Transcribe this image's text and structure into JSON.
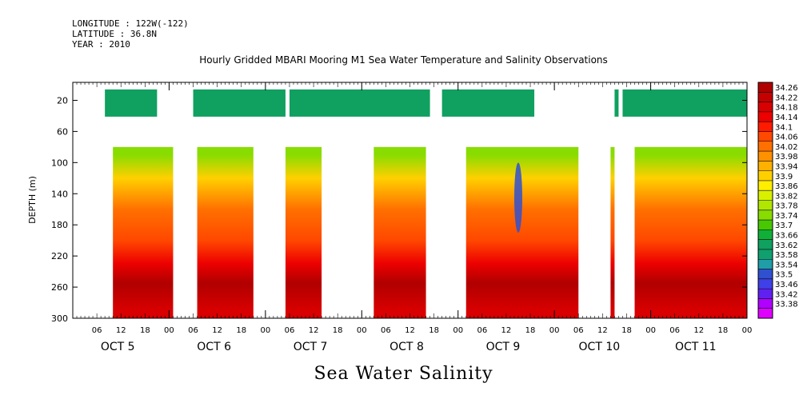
{
  "header": {
    "longitude": "LONGITUDE : 122W(-122)",
    "latitude": "LATITUDE : 36.8N",
    "year": "YEAR : 2010",
    "title": "Hourly Gridded MBARI Mooring M1 Sea Water Temperature and Salinity Observations"
  },
  "footer": {
    "variable": "Sea Water Salinity"
  },
  "chart_data": {
    "type": "heatmap",
    "title": "Hourly Gridded MBARI Mooring M1 Sea Water Temperature and Salinity Observations",
    "variable": "Sea Water Salinity",
    "ylabel": "DEPTH (m)",
    "ylim": [
      300,
      0
    ],
    "y_ticks": [
      "20",
      "60",
      "100",
      "140",
      "180",
      "220",
      "260",
      "300"
    ],
    "x_range_hours": [
      0,
      168
    ],
    "x_hour_ticks": [
      "06",
      "12",
      "18",
      "00",
      "06",
      "12",
      "18",
      "00",
      "06",
      "12",
      "18",
      "00",
      "06",
      "12",
      "18",
      "00",
      "06",
      "12",
      "18",
      "00",
      "06",
      "12",
      "18",
      "00",
      "06",
      "12",
      "18",
      "00"
    ],
    "x_day_labels": [
      "OCT  5",
      "OCT  6",
      "OCT  7",
      "OCT  8",
      "OCT  9",
      "OCT 10",
      "OCT 11"
    ],
    "colorbar": {
      "levels": [
        "34.26",
        "34.22",
        "34.18",
        "34.14",
        "34.1",
        "34.06",
        "34.02",
        "33.98",
        "33.94",
        "33.9",
        "33.86",
        "33.82",
        "33.78",
        "33.74",
        "33.7",
        "33.66",
        "33.62",
        "33.58",
        "33.54",
        "33.5",
        "33.46",
        "33.42",
        "33.38"
      ],
      "colors": [
        "#b00000",
        "#c40000",
        "#d80000",
        "#ec0000",
        "#ff1a00",
        "#ff4800",
        "#ff7000",
        "#ff9000",
        "#ffb000",
        "#ffd000",
        "#ffee00",
        "#d8f000",
        "#b0e600",
        "#88dc00",
        "#48c800",
        "#10b038",
        "#10a060",
        "#10a070",
        "#1f9ea8",
        "#3050d0",
        "#4040e8",
        "#6020f0",
        "#b000ff",
        "#e000ff"
      ]
    },
    "depth_profile": [
      {
        "depth": 20,
        "salinity": 33.64
      },
      {
        "depth": 90,
        "salinity": 33.74
      },
      {
        "depth": 120,
        "salinity": 33.9
      },
      {
        "depth": 160,
        "salinity": 34.02
      },
      {
        "depth": 200,
        "salinity": 34.06
      },
      {
        "depth": 230,
        "salinity": 34.12
      },
      {
        "depth": 255,
        "salinity": 34.24
      },
      {
        "depth": 290,
        "salinity": 34.18
      }
    ],
    "data_segments_hours": [
      [
        10,
        25
      ],
      [
        31,
        45
      ],
      [
        53,
        62
      ],
      [
        75,
        88
      ],
      [
        98,
        126
      ],
      [
        134,
        135
      ],
      [
        140,
        168
      ]
    ],
    "shallow_segments_hours": [
      [
        8,
        21
      ],
      [
        30,
        53
      ],
      [
        54,
        89
      ],
      [
        92,
        115
      ],
      [
        135,
        136
      ],
      [
        137,
        168
      ]
    ],
    "low_salinity_intrusion": {
      "hour": 111,
      "depth_range": [
        100,
        190
      ],
      "salinity": 33.5
    }
  }
}
